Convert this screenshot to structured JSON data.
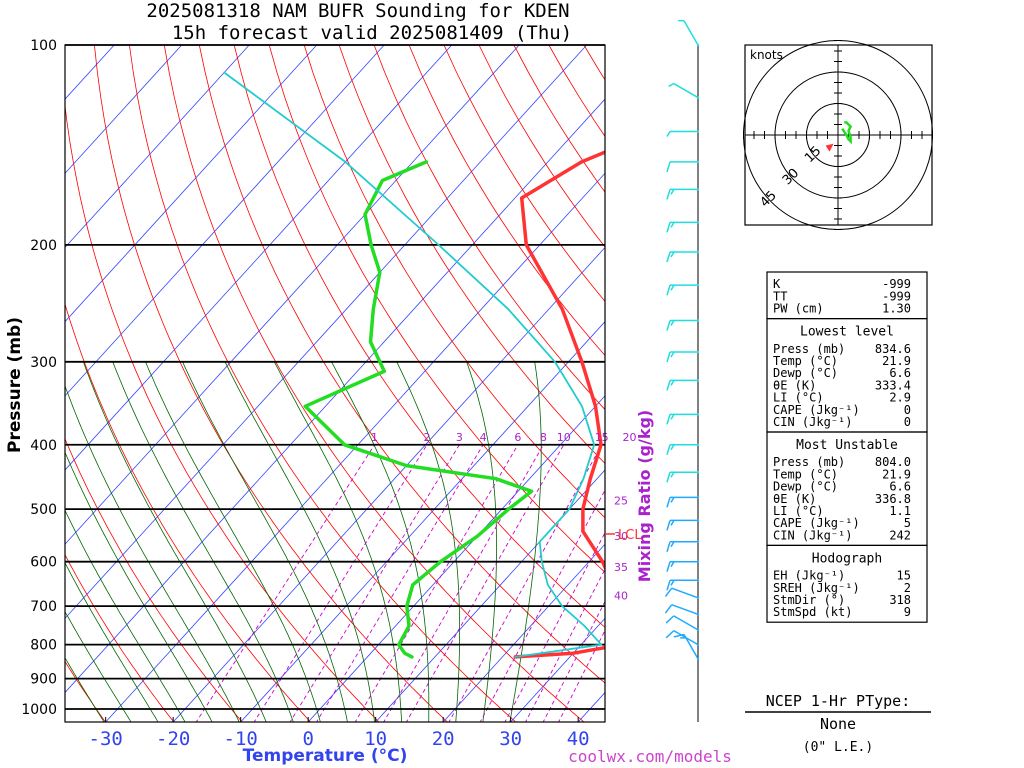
{
  "title_line1": "2025081318 NAM BUFR Sounding for KDEN",
  "title_line2": "15h forecast valid 2025081409 (Thu)",
  "colors": {
    "temp": "#ff3333",
    "dewp": "#22dd22",
    "parcel": "#22cccc",
    "isotherm": "#3344ff",
    "dry_adiabat": "#ff0000",
    "moist_adiabat": "#006600",
    "mixing_ratio": "#cc00cc",
    "wind": "#22aaff",
    "axis_label": "#3344ee",
    "mr_label": "#aa22cc",
    "footer": "#cc44cc"
  },
  "chart_data": {
    "type": "line",
    "xlabel": "Temperature (°C)",
    "ylabel": "Pressure (mb)",
    "xlim": [
      -38,
      42
    ],
    "ylim": [
      1050,
      100
    ],
    "x_ticks": [
      -30,
      -20,
      -10,
      0,
      10,
      20,
      30,
      40
    ],
    "y_ticks": [
      100,
      200,
      300,
      400,
      500,
      600,
      700,
      800,
      900,
      1000
    ],
    "mixing_ratio_label": "Mixing Ratio (g/kg)",
    "mixing_ratio_values": [
      "1",
      "2",
      "3",
      "4",
      "6",
      "8",
      "10",
      "15",
      "20",
      "25",
      "30",
      "35",
      "40"
    ],
    "lcl_label": "LCL",
    "lcl_pressure": 545,
    "series": [
      {
        "key": "temperature",
        "points": [
          [
            834.6,
            21.9
          ],
          [
            824,
            30
          ],
          [
            800,
            36
          ],
          [
            750,
            34
          ],
          [
            700,
            31
          ],
          [
            600,
            22
          ],
          [
            540,
            15
          ],
          [
            500,
            12
          ],
          [
            450,
            9
          ],
          [
            400,
            6
          ],
          [
            350,
            0
          ],
          [
            300,
            -8
          ],
          [
            250,
            -18
          ],
          [
            200,
            -32
          ],
          [
            170,
            -39
          ],
          [
            150,
            -35
          ],
          [
            130,
            -26
          ],
          [
            100,
            -16
          ]
        ]
      },
      {
        "key": "dewpoint",
        "points": [
          [
            834.6,
            6.6
          ],
          [
            824,
            5
          ],
          [
            800,
            3
          ],
          [
            750,
            2
          ],
          [
            700,
            -1
          ],
          [
            650,
            -3
          ],
          [
            600,
            -2
          ],
          [
            550,
            0
          ],
          [
            500,
            1
          ],
          [
            470,
            2
          ],
          [
            450,
            -5
          ],
          [
            430,
            -20
          ],
          [
            400,
            -32
          ],
          [
            350,
            -43
          ],
          [
            310,
            -36
          ],
          [
            280,
            -42
          ],
          [
            250,
            -46
          ],
          [
            220,
            -50
          ],
          [
            200,
            -55
          ],
          [
            180,
            -60
          ],
          [
            160,
            -62
          ],
          [
            150,
            -58
          ]
        ]
      },
      {
        "key": "parcel",
        "points": [
          [
            834.6,
            21.9
          ],
          [
            800,
            33
          ],
          [
            750,
            28
          ],
          [
            700,
            22
          ],
          [
            650,
            17
          ],
          [
            600,
            13
          ],
          [
            560,
            10
          ],
          [
            545,
            10
          ],
          [
            500,
            10
          ],
          [
            450,
            8
          ],
          [
            400,
            5
          ],
          [
            350,
            -2
          ],
          [
            300,
            -12
          ],
          [
            250,
            -26
          ],
          [
            200,
            -45
          ],
          [
            150,
            -70
          ],
          [
            110,
            -100
          ]
        ]
      }
    ],
    "winds": [
      {
        "p": 840,
        "spd": 15,
        "dir": 330
      },
      {
        "p": 800,
        "spd": 10,
        "dir": 300
      },
      {
        "p": 760,
        "spd": 10,
        "dir": 300
      },
      {
        "p": 720,
        "spd": 10,
        "dir": 290
      },
      {
        "p": 680,
        "spd": 10,
        "dir": 290
      },
      {
        "p": 640,
        "spd": 15,
        "dir": 270
      },
      {
        "p": 600,
        "spd": 15,
        "dir": 270
      },
      {
        "p": 560,
        "spd": 15,
        "dir": 270
      },
      {
        "p": 520,
        "spd": 15,
        "dir": 270
      },
      {
        "p": 480,
        "spd": 15,
        "dir": 270
      },
      {
        "p": 440,
        "spd": 15,
        "dir": 270
      },
      {
        "p": 400,
        "spd": 15,
        "dir": 270
      },
      {
        "p": 360,
        "spd": 15,
        "dir": 270
      },
      {
        "p": 320,
        "spd": 15,
        "dir": 270
      },
      {
        "p": 290,
        "spd": 15,
        "dir": 270
      },
      {
        "p": 260,
        "spd": 15,
        "dir": 270
      },
      {
        "p": 230,
        "spd": 15,
        "dir": 270
      },
      {
        "p": 205,
        "spd": 15,
        "dir": 270
      },
      {
        "p": 185,
        "spd": 15,
        "dir": 270
      },
      {
        "p": 165,
        "spd": 15,
        "dir": 270
      },
      {
        "p": 150,
        "spd": 10,
        "dir": 270
      },
      {
        "p": 135,
        "spd": 5,
        "dir": 270
      },
      {
        "p": 120,
        "spd": 5,
        "dir": 300
      },
      {
        "p": 100,
        "spd": 5,
        "dir": 330
      }
    ]
  },
  "hodograph": {
    "units_label": "knots",
    "ring_labels": [
      "15",
      "30",
      "45"
    ],
    "trace": [
      [
        2,
        3
      ],
      [
        4,
        0
      ],
      [
        5,
        -2
      ],
      [
        6,
        -3
      ],
      [
        6,
        -1
      ],
      [
        5,
        2
      ],
      [
        6,
        4
      ],
      [
        4,
        6
      ],
      [
        3,
        6
      ]
    ],
    "storm_motion": [
      -2,
      -3
    ]
  },
  "indices": {
    "top": [
      {
        "label": "K",
        "value": "-999"
      },
      {
        "label": "TT",
        "value": "-999"
      },
      {
        "label": "PW (cm)",
        "value": "1.30"
      }
    ],
    "lowest_title": "Lowest level",
    "lowest": [
      {
        "label": "Press (mb)",
        "value": "834.6"
      },
      {
        "label": "Temp (°C)",
        "value": "21.9"
      },
      {
        "label": "Dewp (°C)",
        "value": "6.6"
      },
      {
        "label": "θE (K)",
        "value": "333.4"
      },
      {
        "label": "LI (°C)",
        "value": "2.9"
      },
      {
        "label": "CAPE (Jkg⁻¹)",
        "value": "0"
      },
      {
        "label": "CIN (Jkg⁻¹)",
        "value": "0"
      }
    ],
    "mu_title": "Most Unstable",
    "mu": [
      {
        "label": "Press (mb)",
        "value": "804.0"
      },
      {
        "label": "Temp (°C)",
        "value": "21.9"
      },
      {
        "label": "Dewp (°C)",
        "value": "6.6"
      },
      {
        "label": "θE (K)",
        "value": "336.8"
      },
      {
        "label": "LI (°C)",
        "value": "1.1"
      },
      {
        "label": "CAPE (Jkg⁻¹)",
        "value": "5"
      },
      {
        "label": "CIN (Jkg⁻¹)",
        "value": "242"
      }
    ],
    "hodo_title": "Hodograph",
    "hodo": [
      {
        "label": "EH (Jkg⁻¹)",
        "value": "15"
      },
      {
        "label": "SREH (Jkg⁻¹)",
        "value": "2"
      },
      {
        "label": "StmDir (°)",
        "value": "318"
      },
      {
        "label": "StmSpd (kt)",
        "value": "9"
      }
    ]
  },
  "ptype": {
    "title": "NCEP 1-Hr PType:",
    "value": "None",
    "le": "(0\" L.E.)"
  },
  "footer": "coolwx.com/models"
}
